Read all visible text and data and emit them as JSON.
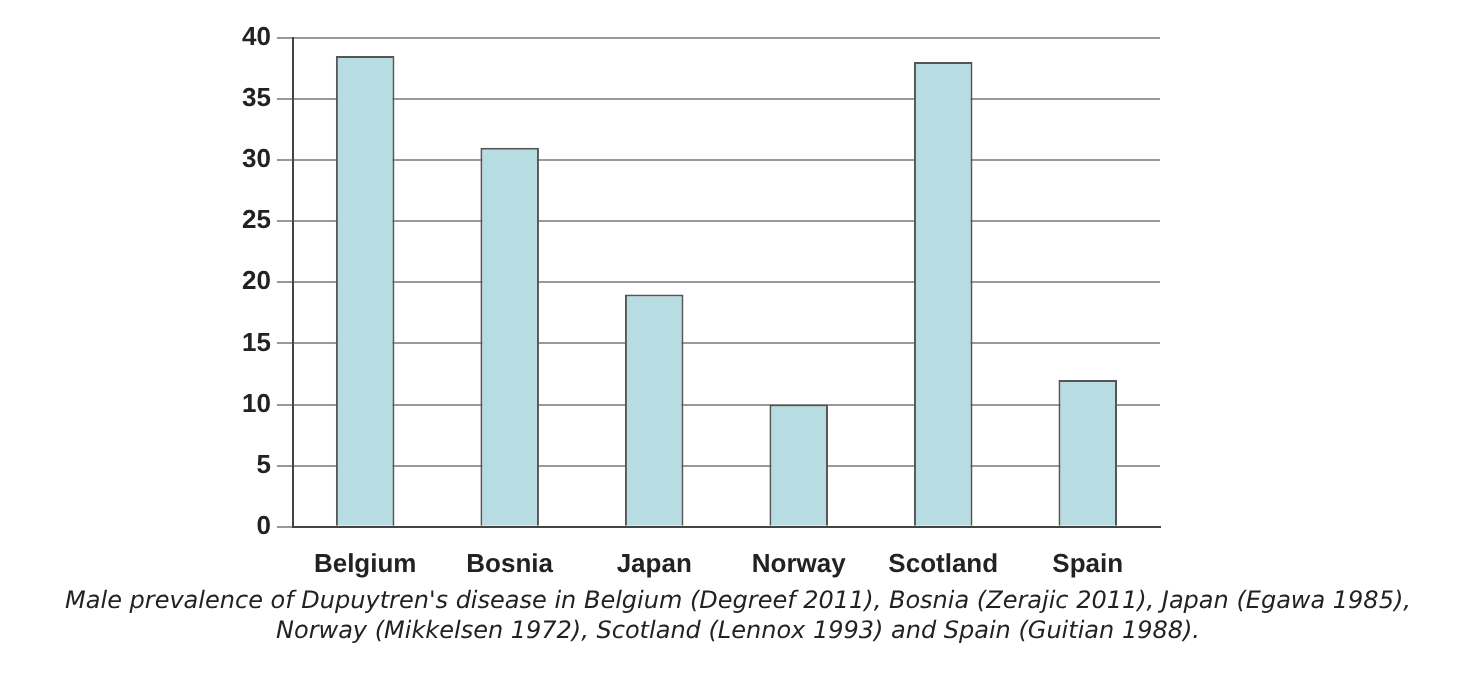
{
  "chart_data": {
    "type": "bar",
    "categories": [
      "Belgium",
      "Bosnia",
      "Japan",
      "Norway",
      "Scotland",
      "Spain"
    ],
    "values": [
      38.5,
      31,
      19,
      10,
      38,
      12
    ],
    "color": "#b7dde3",
    "ylim": [
      0,
      40
    ],
    "yticks": [
      0,
      5,
      10,
      15,
      20,
      25,
      30,
      35,
      40
    ],
    "grid": "y",
    "annotations": [
      "Male prevalence of Dupuytren's disease in Belgium (Degreef 2011),  Bosnia (Zerajic 2011),  Japan (Egawa 1985), Norway (Mikkelsen 1972),  Scotland (Lennox 1993) and  Spain (Guitian 1988)."
    ]
  }
}
